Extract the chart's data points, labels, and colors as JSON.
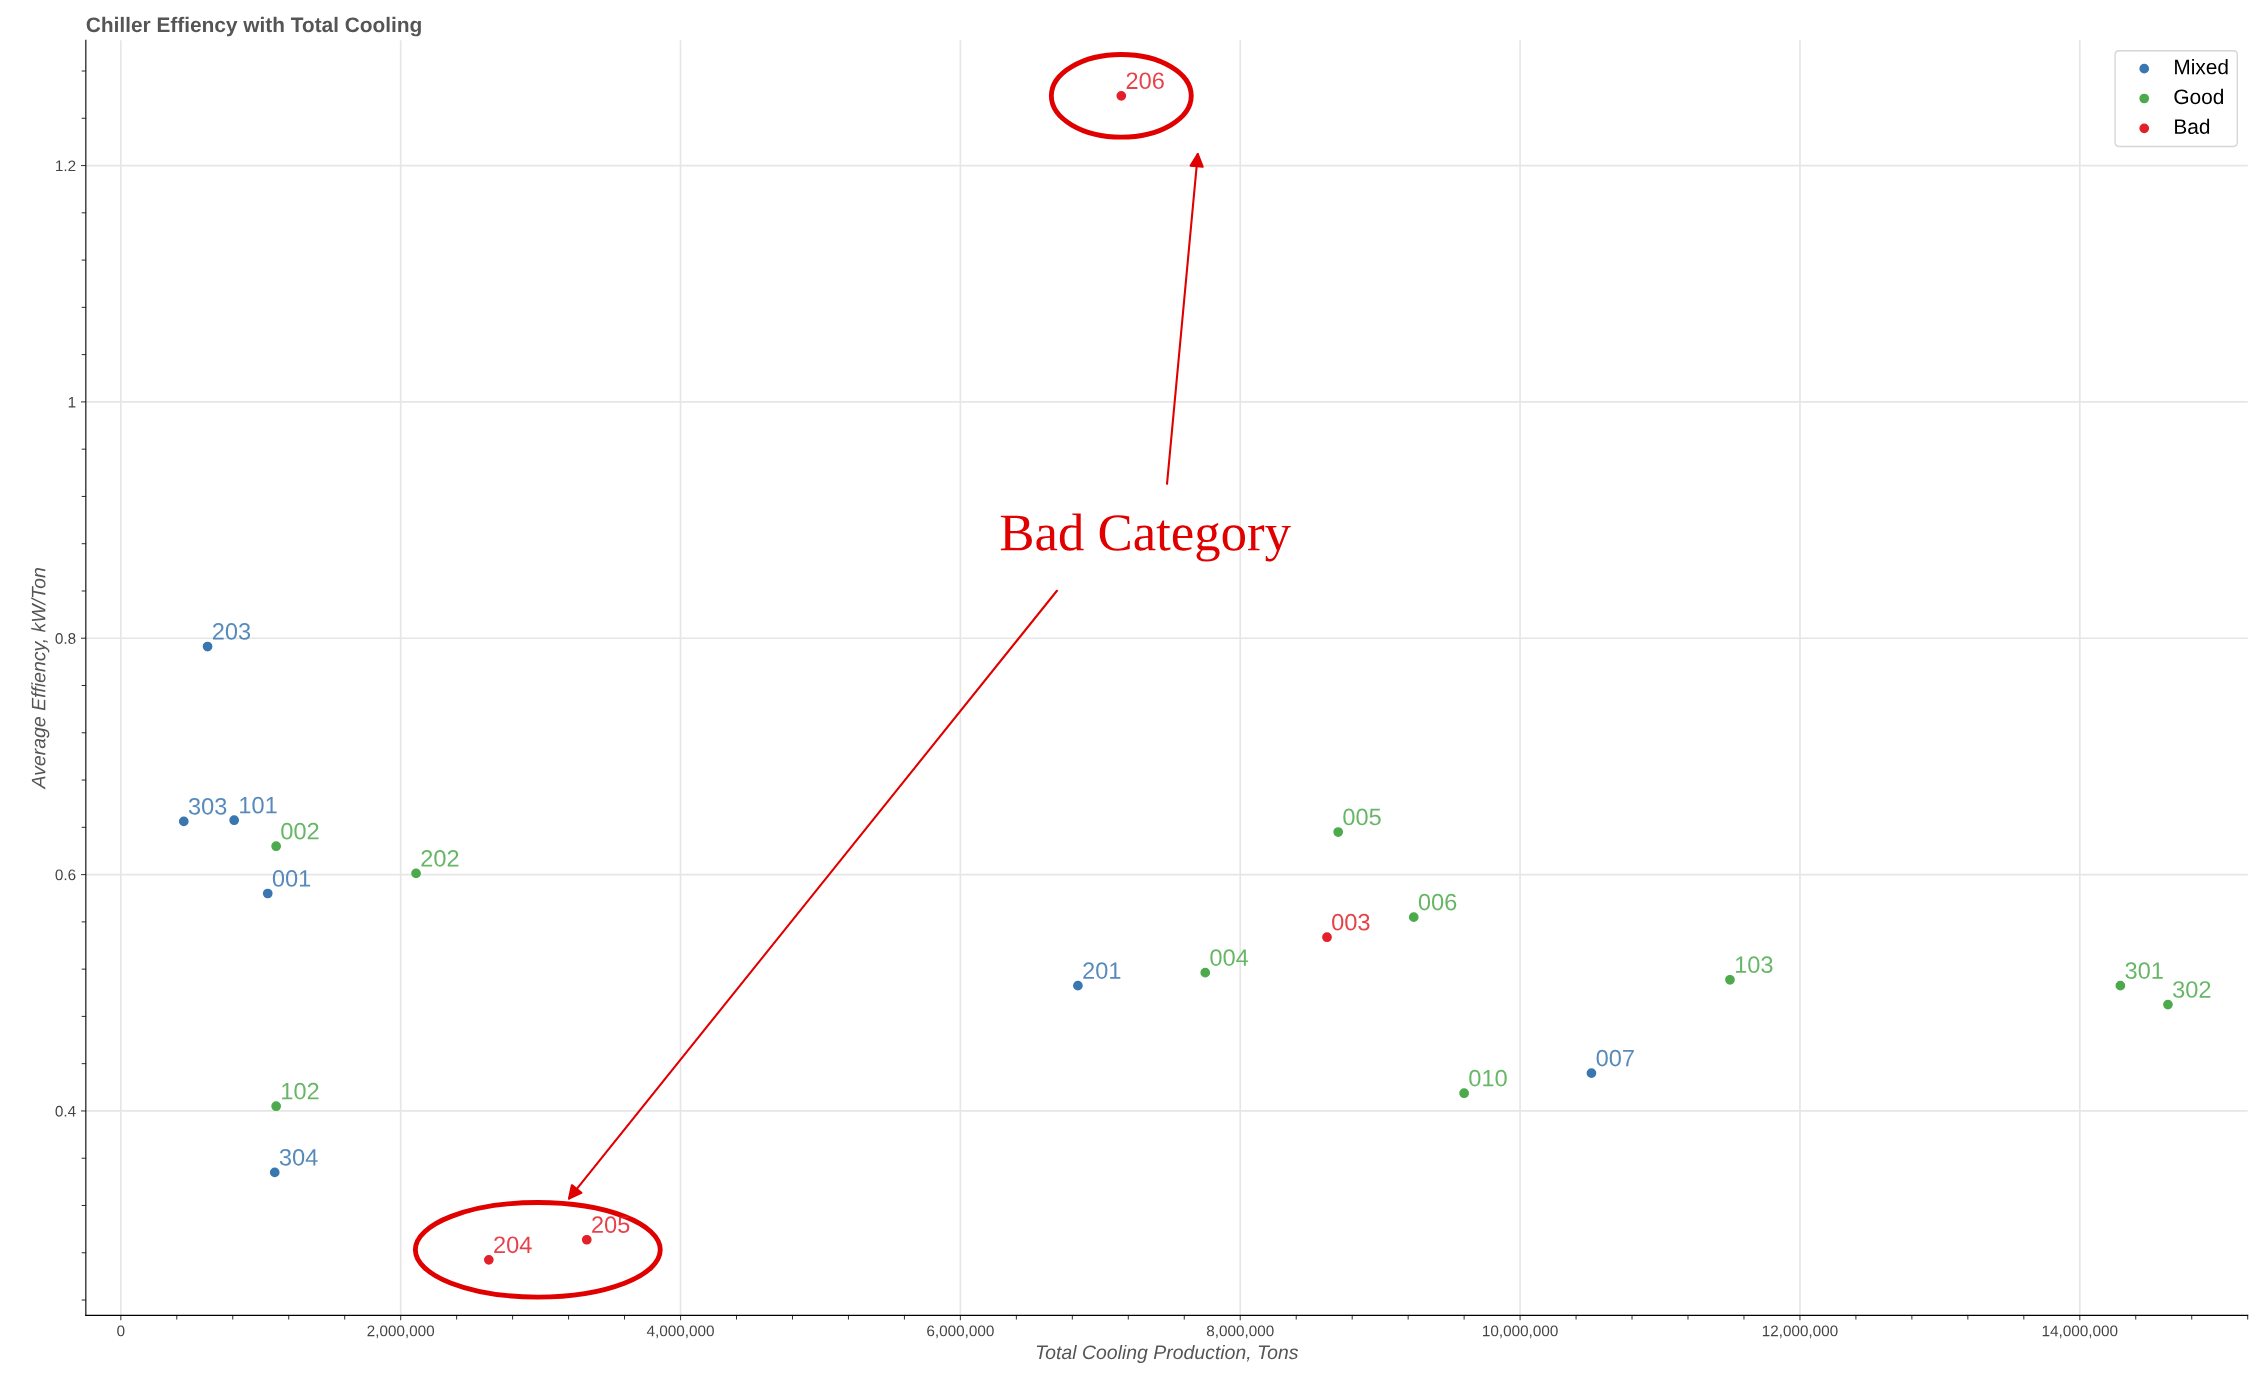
{
  "chart_data": {
    "type": "scatter",
    "title": "Chiller Effiency with Total Cooling",
    "xlabel": "Total Cooling Production, Tons",
    "ylabel": "Average Effiency, kW/Ton",
    "series": [
      {
        "name": "Mixed",
        "color": "#3a76b0",
        "x": [
          620000,
          450000,
          810000,
          1050000,
          1100000,
          6840000,
          10510000
        ],
        "values": [
          0.793,
          0.645,
          0.646,
          0.584,
          0.348,
          0.506,
          0.432
        ]
      },
      {
        "name": "Good",
        "color": "#4caa4c",
        "x": [
          1110000,
          2110000,
          1110000,
          7750000,
          8700000,
          9240000,
          9600000,
          11500000,
          14290000,
          14630000
        ],
        "values": [
          0.624,
          0.601,
          0.404,
          0.517,
          0.636,
          0.564,
          0.415,
          0.511,
          0.506,
          0.49
        ]
      },
      {
        "name": "Bad",
        "color": "#e3202a",
        "x": [
          2630000,
          3330000,
          7150000,
          8620000
        ],
        "values": [
          0.274,
          0.291,
          1.259,
          0.547
        ]
      }
    ],
    "annotations": [
      {
        "text": "203",
        "x": 620000,
        "y": 0.793
      },
      {
        "text": "303",
        "x": 450000,
        "y": 0.645
      },
      {
        "text": "101",
        "x": 810000,
        "y": 0.646
      },
      {
        "text": "001",
        "x": 1050000,
        "y": 0.584
      },
      {
        "text": "304",
        "x": 1100000,
        "y": 0.348
      },
      {
        "text": "201",
        "x": 6840000,
        "y": 0.506
      },
      {
        "text": "007",
        "x": 10510000,
        "y": 0.432
      },
      {
        "text": "002",
        "x": 1110000,
        "y": 0.624
      },
      {
        "text": "202",
        "x": 2110000,
        "y": 0.601
      },
      {
        "text": "102",
        "x": 1110000,
        "y": 0.404
      },
      {
        "text": "004",
        "x": 7750000,
        "y": 0.517
      },
      {
        "text": "005",
        "x": 8700000,
        "y": 0.636
      },
      {
        "text": "006",
        "x": 9240000,
        "y": 0.564
      },
      {
        "text": "010",
        "x": 9600000,
        "y": 0.415
      },
      {
        "text": "103",
        "x": 11500000,
        "y": 0.511
      },
      {
        "text": "301",
        "x": 14290000,
        "y": 0.506
      },
      {
        "text": "302",
        "x": 14630000,
        "y": 0.49
      },
      {
        "text": "204",
        "x": 2630000,
        "y": 0.274
      },
      {
        "text": "205",
        "x": 3330000,
        "y": 0.291
      },
      {
        "text": "206",
        "x": 7150000,
        "y": 1.259
      },
      {
        "text": "003",
        "x": 8620000,
        "y": 0.547
      },
      "Bad Category"
    ],
    "xlim": [
      -250000,
      15200000
    ],
    "xticks": [
      0,
      {
        "value": 2000000,
        "label": "2,000,000"
      },
      {
        "value": 4000000,
        "label": "4,000,000"
      },
      {
        "value": 6000000,
        "label": "6,000,000"
      },
      {
        "value": 8000000,
        "label": "8,000,000"
      },
      {
        "value": 10000000,
        "label": "10,000,000"
      },
      {
        "value": 12000000,
        "label": "12,000,000"
      },
      {
        "value": 14000000,
        "label": "14,000,000"
      }
    ],
    "ylim": [
      0.227,
      1.306
    ],
    "yticks": [
      0.4,
      0.6,
      0.8,
      1,
      1.2
    ],
    "grid": true,
    "legend": "top right",
    "marker": "circle"
  }
}
